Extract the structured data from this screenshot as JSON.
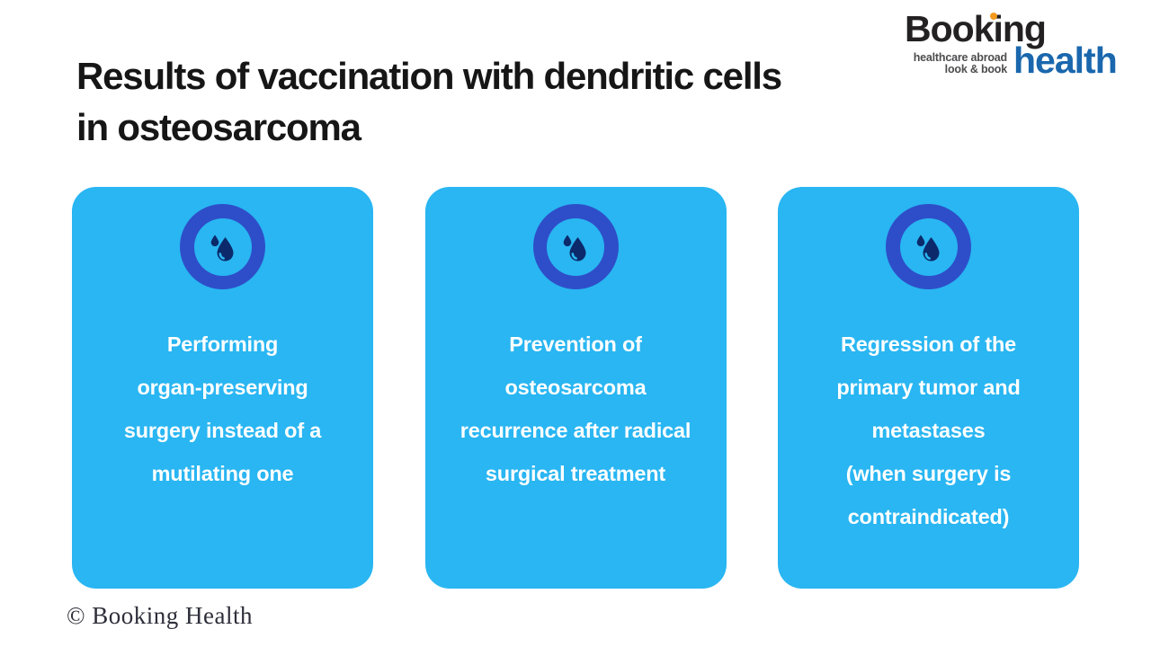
{
  "slide": {
    "title_lines": [
      "Results of vaccination with dendritic cells",
      "in osteosarcoma"
    ],
    "footer_text": "© Booking Health"
  },
  "logo": {
    "brand_top": "Booking",
    "brand_bottom": "health",
    "tagline_lines": [
      "healthcare abroad",
      "look & book"
    ]
  },
  "cards": [
    {
      "icon": "water-drop-icon",
      "text_lines": [
        "Performing",
        "organ-preserving",
        "surgery instead of a",
        "mutilating one"
      ]
    },
    {
      "icon": "water-drop-icon",
      "text_lines": [
        "Prevention of",
        "osteosarcoma",
        "recurrence after radical",
        "surgical treatment"
      ]
    },
    {
      "icon": "water-drop-icon",
      "text_lines": [
        "Regression of the",
        "primary tumor and",
        "metastases",
        "(when surgery is",
        "contraindicated)"
      ]
    }
  ],
  "colors": {
    "card_background": "#29b6f2",
    "icon_ring": "#2e4ec9",
    "icon_drop": "#0c2a6b",
    "card_text": "#ffffff",
    "title_text": "#161616",
    "logo_black": "#232122",
    "logo_health_blue": "#1a67ad",
    "logo_dot_orange": "#f49a1f",
    "logo_tagline": "#4d4d4f",
    "footer_text": "#2e2e3a"
  }
}
